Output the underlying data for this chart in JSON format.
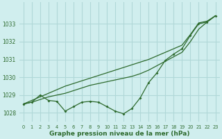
{
  "xlabel": "Graphe pression niveau de la mer (hPa)",
  "x": [
    0,
    1,
    2,
    3,
    4,
    5,
    6,
    7,
    8,
    9,
    10,
    11,
    12,
    13,
    14,
    15,
    16,
    17,
    18,
    19,
    20,
    21,
    22,
    23
  ],
  "line_upper": [
    1028.5,
    1028.7,
    1028.9,
    1029.1,
    1029.3,
    1029.5,
    1029.65,
    1029.8,
    1029.95,
    1030.1,
    1030.25,
    1030.4,
    1030.55,
    1030.7,
    1030.85,
    1031.0,
    1031.2,
    1031.4,
    1031.6,
    1031.8,
    1032.4,
    1033.05,
    1033.15,
    1033.45
  ],
  "line_lower": [
    1028.5,
    1028.6,
    1028.75,
    1028.9,
    1029.0,
    1029.1,
    1029.25,
    1029.4,
    1029.55,
    1029.65,
    1029.75,
    1029.85,
    1029.95,
    1030.05,
    1030.2,
    1030.4,
    1030.65,
    1030.9,
    1031.15,
    1031.4,
    1032.0,
    1032.7,
    1033.1,
    1033.45
  ],
  "line_wavy": [
    1028.5,
    1028.6,
    1029.0,
    1028.7,
    1028.65,
    1028.1,
    1028.35,
    1028.6,
    1028.65,
    1028.6,
    1028.35,
    1028.1,
    1027.95,
    1028.25,
    1028.85,
    1029.7,
    1030.25,
    1030.95,
    1031.3,
    1031.6,
    1032.35,
    1033.0,
    1033.1,
    1033.45
  ],
  "bg_color": "#d0eeee",
  "grid_color": "#b0d8d8",
  "line_color": "#2d6a2d",
  "ylim_min": 1027.5,
  "ylim_max": 1034.2,
  "yticks": [
    1028,
    1029,
    1030,
    1031,
    1032,
    1033
  ],
  "xticks": [
    0,
    1,
    2,
    3,
    4,
    5,
    6,
    7,
    8,
    9,
    10,
    11,
    12,
    13,
    14,
    15,
    16,
    17,
    18,
    19,
    20,
    21,
    22,
    23
  ]
}
